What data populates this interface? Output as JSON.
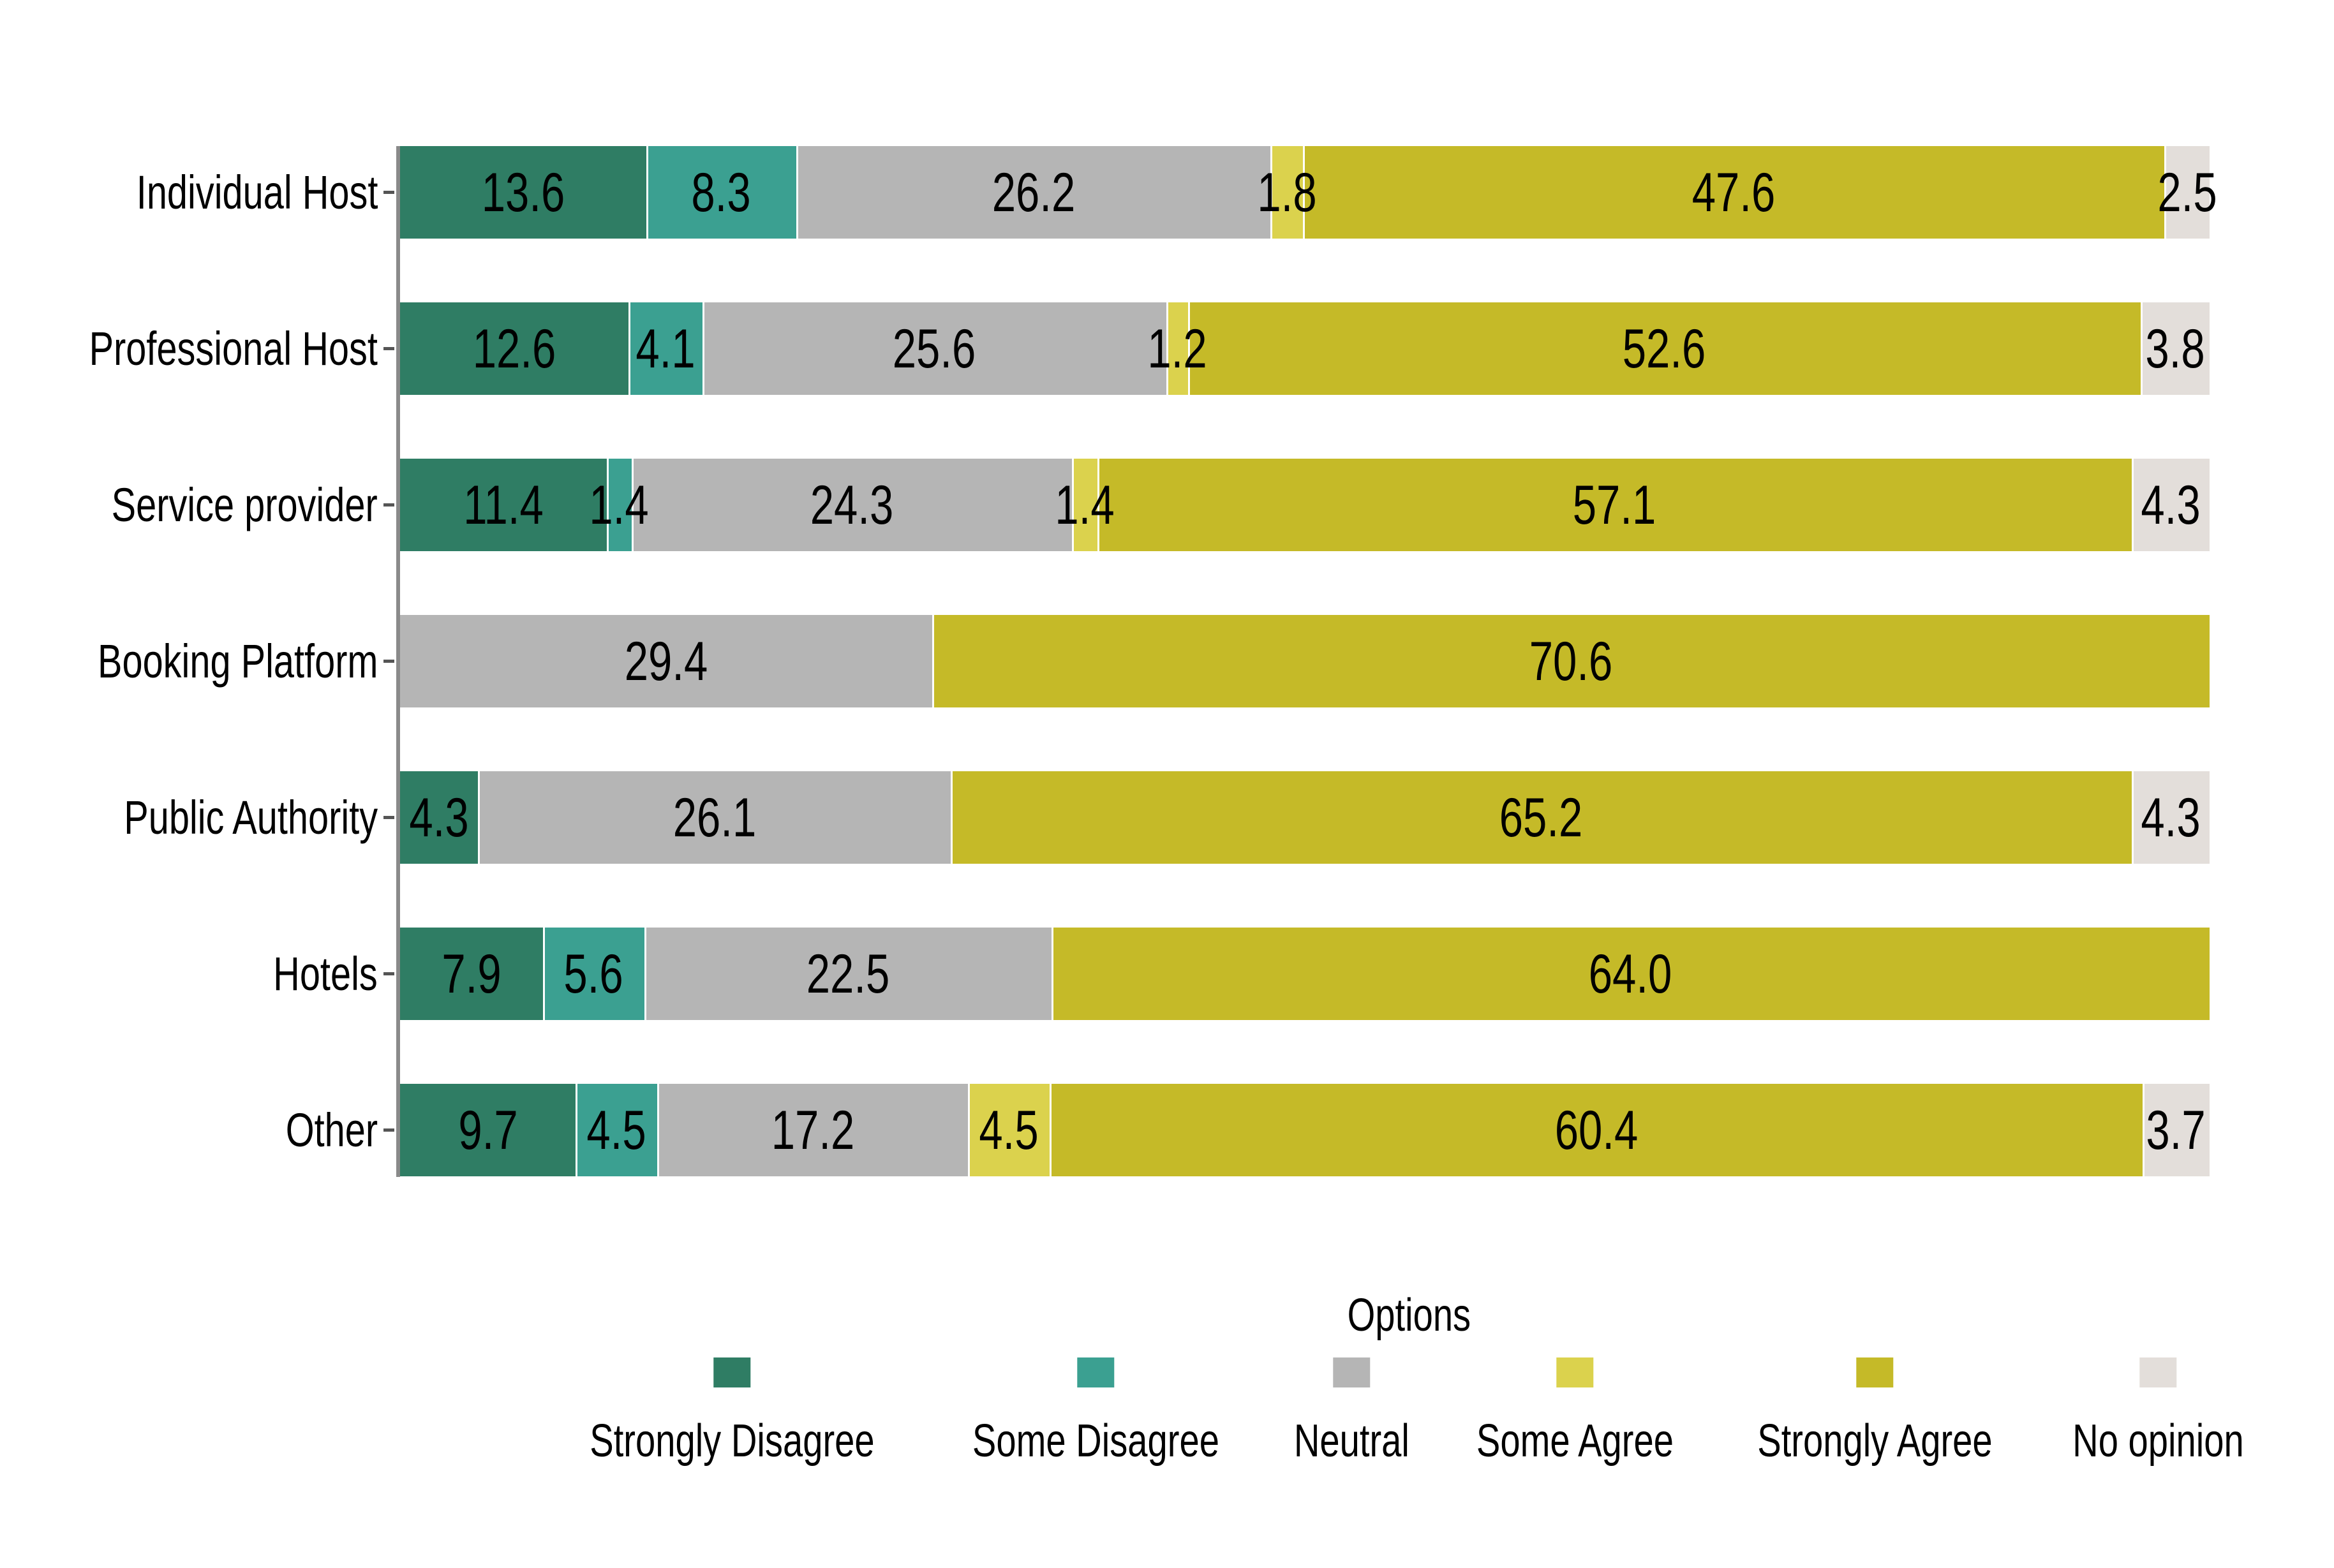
{
  "chart_data": {
    "type": "bar",
    "orientation": "horizontal",
    "stacked": true,
    "title": "",
    "xlabel": "",
    "ylabel": "",
    "xlim": [
      0,
      100
    ],
    "grid": false,
    "legend_position": "bottom",
    "legend_title": "Options",
    "categories": [
      "Individual Host",
      "Professional Host",
      "Service provider",
      "Booking Platform",
      "Public Authority",
      "Hotels",
      "Other"
    ],
    "series": [
      {
        "name": "Strongly Disagree",
        "color": "#2F7D64",
        "values": [
          "13.6",
          "12.6",
          "11.4",
          "0",
          "4.3",
          "7.9",
          "9.7"
        ]
      },
      {
        "name": "Some Disagree",
        "color": "#3BA091",
        "values": [
          "8.3",
          "4.1",
          "1.4",
          "0",
          "0",
          "5.6",
          "4.5"
        ]
      },
      {
        "name": "Neutral",
        "color": "#B5B5B5",
        "values": [
          "26.2",
          "25.6",
          "24.3",
          "29.4",
          "26.1",
          "22.5",
          "17.2"
        ]
      },
      {
        "name": "Some Agree",
        "color": "#DBD24D",
        "values": [
          "1.8",
          "1.2",
          "1.4",
          "0",
          "0",
          "0",
          "4.5"
        ]
      },
      {
        "name": "Strongly Agree",
        "color": "#C5BA28",
        "values": [
          "47.6",
          "52.6",
          "57.1",
          "70.6",
          "65.2",
          "64.0",
          "60.4"
        ]
      },
      {
        "name": "No opinion",
        "color": "#E3DEDA",
        "values": [
          "2.5",
          "3.8",
          "4.3",
          "0",
          "4.3",
          "0",
          "3.7"
        ]
      }
    ]
  },
  "layout_note": ""
}
